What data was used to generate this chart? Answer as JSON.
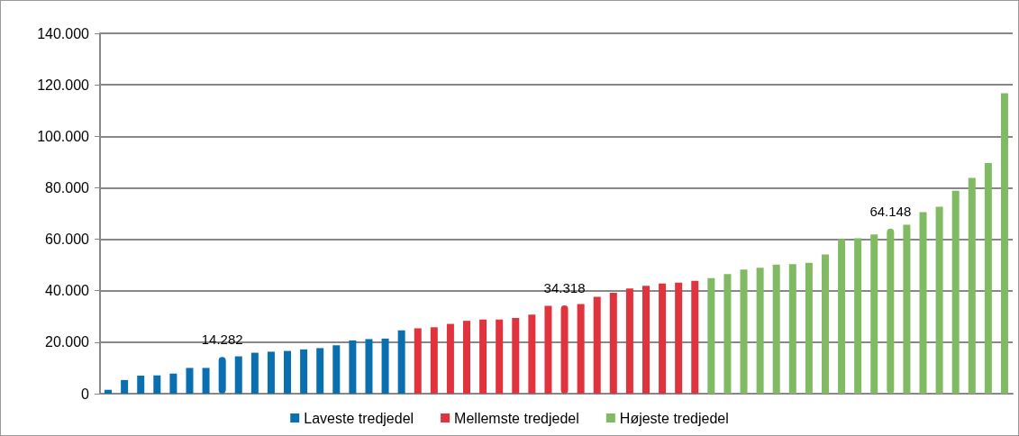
{
  "chart_data": {
    "type": "bar",
    "categories": [
      null,
      null,
      null,
      null,
      null,
      null,
      null,
      null,
      null,
      null,
      null,
      null,
      null,
      null,
      null,
      null,
      null,
      null,
      null,
      null,
      null,
      null,
      null,
      null,
      null,
      null,
      null,
      null,
      null,
      null,
      null,
      null,
      null,
      null,
      null,
      null,
      null,
      null,
      null,
      null,
      null,
      null,
      null,
      null,
      null,
      null,
      null,
      null,
      null,
      null,
      null,
      null,
      null,
      null,
      null,
      null
    ],
    "series": [
      {
        "name": "Laveste tredjedel",
        "color": "#0a6fb1",
        "values": [
          1500,
          5300,
          7000,
          7100,
          7800,
          10000,
          10000,
          14282,
          14500,
          15900,
          16300,
          16600,
          17200,
          17700,
          18800,
          20700,
          21200,
          21400,
          24600,
          null,
          null,
          null,
          null,
          null,
          null,
          null,
          null,
          null,
          null,
          null,
          null,
          null,
          null,
          null,
          null,
          null,
          null,
          null,
          null,
          null,
          null,
          null,
          null,
          null,
          null,
          null,
          null,
          null,
          null,
          null,
          null,
          null,
          null,
          null,
          null,
          null
        ],
        "value_labels": [
          null,
          null,
          null,
          null,
          null,
          null,
          null,
          "14.282",
          null,
          null,
          null,
          null,
          null,
          null,
          null,
          null,
          null,
          null,
          null,
          null,
          null,
          null,
          null,
          null,
          null,
          null,
          null,
          null,
          null,
          null,
          null,
          null,
          null,
          null,
          null,
          null,
          null,
          null,
          null,
          null,
          null,
          null,
          null,
          null,
          null,
          null,
          null,
          null,
          null,
          null,
          null,
          null,
          null,
          null,
          null,
          null
        ]
      },
      {
        "name": "Mellemste tredjedel",
        "color": "#e0333e",
        "values": [
          null,
          null,
          null,
          null,
          null,
          null,
          null,
          null,
          null,
          null,
          null,
          null,
          null,
          null,
          null,
          null,
          null,
          null,
          null,
          25400,
          25800,
          27100,
          28300,
          28800,
          28800,
          29400,
          30700,
          34100,
          34318,
          34800,
          37600,
          39200,
          40900,
          41900,
          42800,
          43100,
          43800,
          null,
          null,
          null,
          null,
          null,
          null,
          null,
          null,
          null,
          null,
          null,
          null,
          null,
          null,
          null,
          null,
          null,
          null,
          null
        ],
        "value_labels": [
          null,
          null,
          null,
          null,
          null,
          null,
          null,
          null,
          null,
          null,
          null,
          null,
          null,
          null,
          null,
          null,
          null,
          null,
          null,
          null,
          null,
          null,
          null,
          null,
          null,
          null,
          null,
          null,
          "34.318",
          null,
          null,
          null,
          null,
          null,
          null,
          null,
          null,
          null,
          null,
          null,
          null,
          null,
          null,
          null,
          null,
          null,
          null,
          null,
          null,
          null,
          null,
          null,
          null,
          null,
          null,
          null
        ]
      },
      {
        "name": "Højeste tredjedel",
        "color": "#80ba63",
        "values": [
          null,
          null,
          null,
          null,
          null,
          null,
          null,
          null,
          null,
          null,
          null,
          null,
          null,
          null,
          null,
          null,
          null,
          null,
          null,
          null,
          null,
          null,
          null,
          null,
          null,
          null,
          null,
          null,
          null,
          null,
          null,
          null,
          null,
          null,
          null,
          null,
          null,
          44900,
          46500,
          48200,
          48900,
          50100,
          50300,
          50800,
          54100,
          60000,
          60400,
          61900,
          64148,
          65600,
          70500,
          72600,
          78800,
          83800,
          89600,
          116700
        ],
        "value_labels": [
          null,
          null,
          null,
          null,
          null,
          null,
          null,
          null,
          null,
          null,
          null,
          null,
          null,
          null,
          null,
          null,
          null,
          null,
          null,
          null,
          null,
          null,
          null,
          null,
          null,
          null,
          null,
          null,
          null,
          null,
          null,
          null,
          null,
          null,
          null,
          null,
          null,
          null,
          null,
          null,
          null,
          null,
          null,
          null,
          null,
          null,
          null,
          null,
          "64.148",
          null,
          null,
          null,
          null,
          null,
          null,
          null
        ]
      }
    ],
    "ylim": [
      0,
      140000
    ],
    "yticks": [
      {
        "value": 0,
        "label": "0"
      },
      {
        "value": 20000,
        "label": "20.000"
      },
      {
        "value": 40000,
        "label": "40.000"
      },
      {
        "value": 60000,
        "label": "60.000"
      },
      {
        "value": 80000,
        "label": "80.000"
      },
      {
        "value": 100000,
        "label": "100.000"
      },
      {
        "value": 120000,
        "label": "120.000"
      },
      {
        "value": 140000,
        "label": "140.000"
      }
    ],
    "grid": "y",
    "legend": "bottom"
  }
}
